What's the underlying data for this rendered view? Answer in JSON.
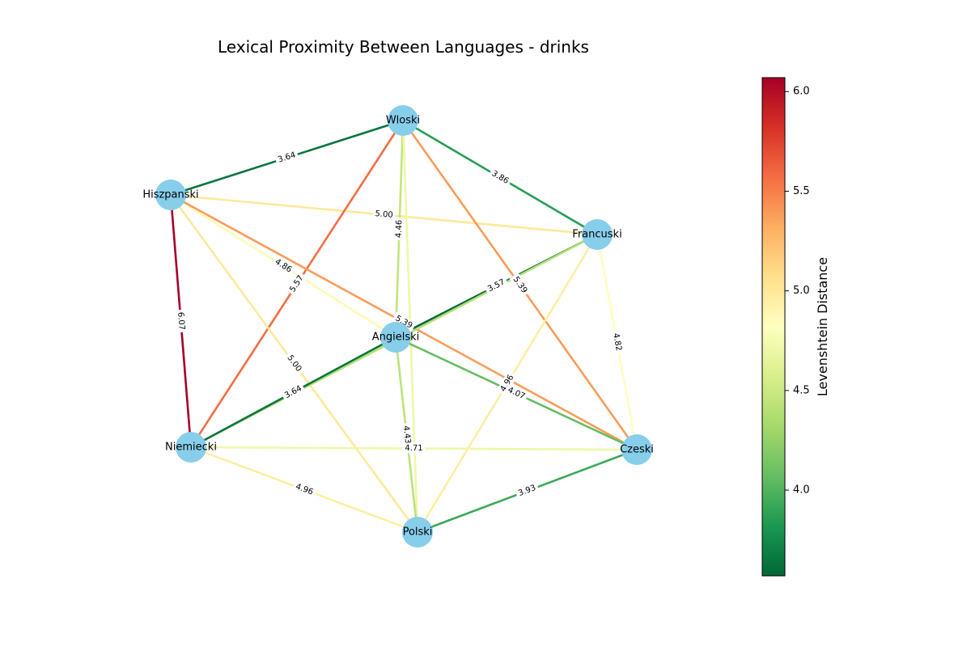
{
  "title": "Lexical Proximity Between Languages - drinks",
  "colorbar": {
    "label": "Levenshtein Distance",
    "min": 3.57,
    "max": 6.07,
    "ticks": [
      "4.0",
      "4.5",
      "5.0",
      "5.5",
      "6.0"
    ],
    "tick_values": [
      4.0,
      4.5,
      5.0,
      5.5,
      6.0
    ],
    "colormap": "RdYlGn_r"
  },
  "nodes": [
    {
      "id": "Wloski",
      "label": "Wloski"
    },
    {
      "id": "Hiszpanski",
      "label": "Hiszpanski"
    },
    {
      "id": "Francuski",
      "label": "Francuski"
    },
    {
      "id": "Angielski",
      "label": "Angielski"
    },
    {
      "id": "Niemiecki",
      "label": "Niemiecki"
    },
    {
      "id": "Czeski",
      "label": "Czeski"
    },
    {
      "id": "Polski",
      "label": "Polski"
    }
  ],
  "edges": [
    {
      "source": "Hiszpanski",
      "target": "Wloski",
      "value": 3.64,
      "label": "3.64"
    },
    {
      "source": "Wloski",
      "target": "Francuski",
      "value": 3.86,
      "label": "3.86"
    },
    {
      "source": "Hiszpanski",
      "target": "Francuski",
      "value": 5.0,
      "label": "5.00"
    },
    {
      "source": "Wloski",
      "target": "Angielski",
      "value": 4.46,
      "label": "4.46"
    },
    {
      "source": "Wloski",
      "target": "Niemiecki",
      "value": 5.57,
      "label": "5.57"
    },
    {
      "source": "Wloski",
      "target": "Czeski",
      "value": 5.39,
      "label": "5.39"
    },
    {
      "source": "Wloski",
      "target": "Polski",
      "value": 4.71,
      "label": ""
    },
    {
      "source": "Hiszpanski",
      "target": "Angielski",
      "value": 4.86,
      "label": "4.86"
    },
    {
      "source": "Hiszpanski",
      "target": "Czeski",
      "value": 5.39,
      "label": "5.39"
    },
    {
      "source": "Hiszpanski",
      "target": "Niemiecki",
      "value": 6.07,
      "label": "6.07"
    },
    {
      "source": "Hiszpanski",
      "target": "Polski",
      "value": 5.0,
      "label": "5.00"
    },
    {
      "source": "Francuski",
      "target": "Angielski",
      "value": 3.57,
      "label": "3.57"
    },
    {
      "source": "Francuski",
      "target": "Czeski",
      "value": 4.82,
      "label": "4.82"
    },
    {
      "source": "Francuski",
      "target": "Polski",
      "value": 4.96,
      "label": "4.96"
    },
    {
      "source": "Francuski",
      "target": "Niemiecki",
      "value": 4.4,
      "label": ""
    },
    {
      "source": "Angielski",
      "target": "Niemiecki",
      "value": 3.64,
      "label": "3.64"
    },
    {
      "source": "Angielski",
      "target": "Czeski",
      "value": 4.07,
      "label": "4.07"
    },
    {
      "source": "Angielski",
      "target": "Polski",
      "value": 4.43,
      "label": "4.43"
    },
    {
      "source": "Niemiecki",
      "target": "Czeski",
      "value": 4.71,
      "label": "4.71"
    },
    {
      "source": "Niemiecki",
      "target": "Polski",
      "value": 4.96,
      "label": "4.96"
    },
    {
      "source": "Czeski",
      "target": "Polski",
      "value": 3.93,
      "label": "3.93"
    }
  ]
}
